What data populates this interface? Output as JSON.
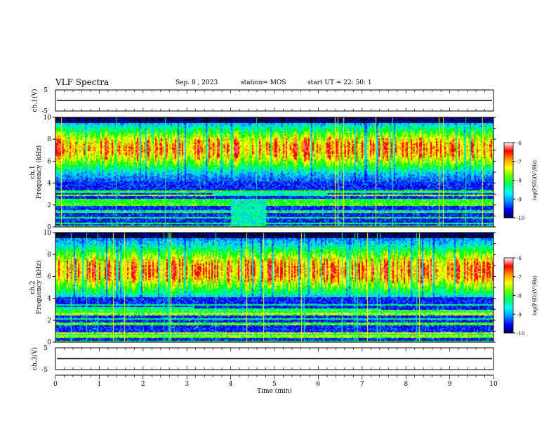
{
  "header": {
    "title": "VLF Spectra",
    "date": "Sep. 8 , 2023",
    "station": "station= MOS",
    "start": "start UT = 22: 50: 1"
  },
  "chart_data": [
    {
      "type": "line",
      "panel": "ch1-waveform",
      "ylabel": "ch.1(V)",
      "ylim": [
        -5,
        5
      ],
      "yticks": [
        "5",
        "-5"
      ],
      "xlim": [
        0,
        10
      ],
      "series": [
        {
          "values_description": "flat",
          "level": 0
        }
      ]
    },
    {
      "type": "heatmap",
      "panel": "ch1-spectrogram",
      "ylabel": "ch.1 Frequency (kHz)",
      "ylabel_line1": "ch.1",
      "ylabel_line2": "Frequency (kHz)",
      "ylim": [
        0,
        10
      ],
      "yticks": [
        "0",
        "2",
        "4",
        "6",
        "8",
        "10"
      ],
      "xlim": [
        0,
        10
      ],
      "colorbar": {
        "label": "log(PSD)(V²/Hz)",
        "ticks": [
          "-6",
          "-7",
          "-8",
          "-9",
          "-10"
        ],
        "range": [
          -10,
          -6
        ]
      }
    },
    {
      "type": "heatmap",
      "panel": "ch2-spectrogram",
      "ylabel": "ch.2 Frequency (kHz)",
      "ylabel_line1": "ch.2",
      "ylabel_line2": "Frequency (kHz)",
      "ylim": [
        0,
        10
      ],
      "yticks": [
        "0",
        "2",
        "4",
        "6",
        "8",
        "10"
      ],
      "xlim": [
        0,
        10
      ],
      "colorbar": {
        "label": "log(PSD)(V²/Hz)",
        "ticks": [
          "-6",
          "-7",
          "-8",
          "-9",
          "-10"
        ],
        "range": [
          -10,
          -6
        ]
      }
    },
    {
      "type": "line",
      "panel": "ch3-waveform",
      "ylabel": "ch.3(V)",
      "ylim": [
        -5,
        5
      ],
      "yticks": [
        "5",
        "-5"
      ],
      "xlim": [
        0,
        10
      ],
      "xlabel": "Time (min)",
      "xticks": [
        "0",
        "1",
        "2",
        "3",
        "4",
        "5",
        "6",
        "7",
        "8",
        "9",
        "10"
      ],
      "series": [
        {
          "values_description": "flat",
          "level": 0
        }
      ]
    }
  ],
  "colors": {
    "cmap": [
      "#000000",
      "#0000a0",
      "#0000ff",
      "#0064ff",
      "#00c8ff",
      "#00ff96",
      "#00ff00",
      "#96ff00",
      "#ffff00",
      "#ff9600",
      "#ff0000",
      "#ff6464"
    ]
  }
}
